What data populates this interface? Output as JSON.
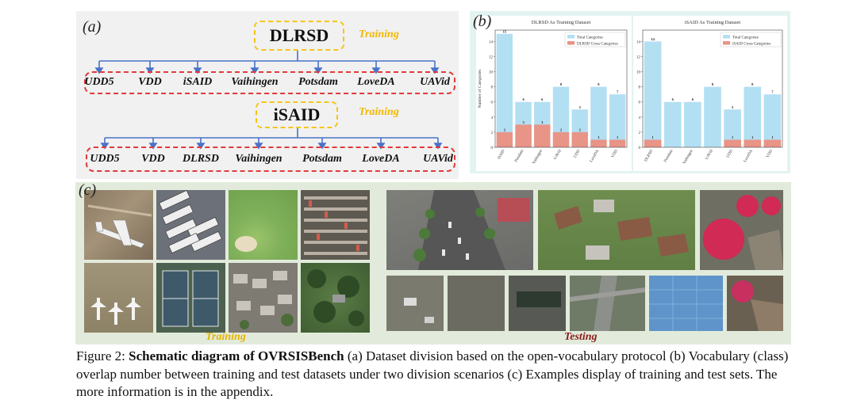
{
  "panel_a": {
    "label": "(a)",
    "training_tag": "Training",
    "trees": [
      {
        "root": "DLRSD",
        "children": [
          "UDD5",
          "VDD",
          "iSAID",
          "Vaihingen",
          "Potsdam",
          "LoveDA",
          "UAVid"
        ]
      },
      {
        "root": "iSAID",
        "children": [
          "UDD5",
          "VDD",
          "DLRSD",
          "Vaihingen",
          "Potsdam",
          "LoveDA",
          "UAVid"
        ]
      }
    ]
  },
  "panel_b": {
    "label": "(b)",
    "chart_data": [
      {
        "type": "bar",
        "title": "DLRSD As Training Dataset",
        "ylabel": "Number of Categories",
        "ylim": [
          0,
          15.5
        ],
        "yticks": [
          0,
          2,
          4,
          6,
          8,
          10,
          12,
          14
        ],
        "categories": [
          "iSAID",
          "Potsdam",
          "Vaihingen",
          "UAVid",
          "UDD",
          "LoveDA",
          "VDD"
        ],
        "series": [
          {
            "name": "Total Categories",
            "color": "#b3dff3",
            "values": [
              15,
              6,
              6,
              8,
              5,
              8,
              7
            ]
          },
          {
            "name": "DLRSD Cross Categories",
            "color": "#e89487",
            "values": [
              2,
              3,
              3,
              2,
              2,
              1,
              1
            ]
          }
        ],
        "legend": "top-right"
      },
      {
        "type": "bar",
        "title": "iSAID As Training Dataset",
        "ylabel": "",
        "ylim": [
          0,
          15.5
        ],
        "yticks": [
          0,
          2,
          4,
          6,
          8,
          10,
          12,
          14
        ],
        "categories": [
          "DLRSD",
          "Potsdam",
          "Vaihingen",
          "UAVid",
          "UDD",
          "LoveDA",
          "VDD"
        ],
        "series": [
          {
            "name": "Total Categories",
            "color": "#b3dff3",
            "values": [
              14,
              6,
              6,
              8,
              5,
              8,
              7
            ]
          },
          {
            "name": "iSAID Cross Categories",
            "color": "#e89487",
            "values": [
              1,
              0,
              0,
              0,
              1,
              1,
              1
            ]
          }
        ],
        "legend": "top-right"
      }
    ]
  },
  "panel_c": {
    "label": "(c)",
    "training_caption": "Training",
    "testing_caption": "Testing",
    "training_color": "#e6b400",
    "testing_color": "#8b1a1a"
  },
  "caption": {
    "prefix": "Figure 2: ",
    "bold": "Schematic diagram of OVRSISBench",
    "rest": " (a) Dataset division based on the open-vocabulary protocol (b) Vocabulary (class) overlap number between training and test datasets under two division scenarios (c) Examples display of training and test sets. The more information is in the appendix."
  }
}
